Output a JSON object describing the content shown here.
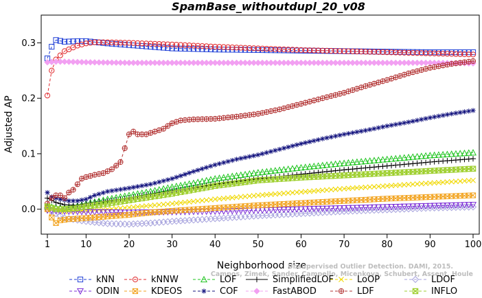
{
  "chart_data": {
    "type": "line",
    "title": "SpamBase_withoutdupl_20_v08",
    "xlabel": "Neighborhood size",
    "ylabel": "Adjusted AP",
    "xlim": [
      1,
      100
    ],
    "ylim": [
      -0.045,
      0.35
    ],
    "xticks": [
      1,
      10,
      20,
      30,
      40,
      50,
      60,
      70,
      80,
      90,
      100
    ],
    "yticks": [
      0.0,
      0.1,
      0.2,
      0.3
    ],
    "ytick_labels": [
      "0.0",
      "0.1",
      "0.2",
      "0.3"
    ],
    "grid": false,
    "legend_position": "bottom",
    "watermark": [
      "Unsupervised Outlier Detection. DAMI, 2015.",
      "Campos, Zimek, Sander, Campello, Micenkova, Schubert, Assent, Houle"
    ],
    "series": [
      {
        "name": "kNN",
        "color": "#1f3fd6",
        "marker": "square",
        "dash": "4,3",
        "points": [
          [
            1,
            0.272
          ],
          [
            2,
            0.293
          ],
          [
            3,
            0.305
          ],
          [
            5,
            0.302
          ],
          [
            8,
            0.303
          ],
          [
            10,
            0.303
          ],
          [
            15,
            0.299
          ],
          [
            20,
            0.296
          ],
          [
            30,
            0.29
          ],
          [
            40,
            0.288
          ],
          [
            50,
            0.287
          ],
          [
            60,
            0.286
          ],
          [
            70,
            0.285
          ],
          [
            80,
            0.284
          ],
          [
            90,
            0.283
          ],
          [
            100,
            0.283
          ]
        ]
      },
      {
        "name": "kNNW",
        "color": "#e0262a",
        "marker": "circle",
        "dash": "4,3",
        "points": [
          [
            1,
            0.205
          ],
          [
            2,
            0.25
          ],
          [
            3,
            0.27
          ],
          [
            5,
            0.285
          ],
          [
            8,
            0.295
          ],
          [
            10,
            0.299
          ],
          [
            12,
            0.301
          ],
          [
            15,
            0.301
          ],
          [
            20,
            0.3
          ],
          [
            30,
            0.297
          ],
          [
            40,
            0.293
          ],
          [
            50,
            0.29
          ],
          [
            60,
            0.287
          ],
          [
            70,
            0.285
          ],
          [
            80,
            0.283
          ],
          [
            90,
            0.281
          ],
          [
            100,
            0.279
          ]
        ]
      },
      {
        "name": "LOF",
        "color": "#1fc41f",
        "marker": "triangle",
        "dash": "4,3",
        "points": [
          [
            1,
            0.005
          ],
          [
            3,
            0.003
          ],
          [
            5,
            0.002
          ],
          [
            8,
            0.006
          ],
          [
            10,
            0.01
          ],
          [
            15,
            0.018
          ],
          [
            20,
            0.025
          ],
          [
            25,
            0.032
          ],
          [
            30,
            0.04
          ],
          [
            35,
            0.047
          ],
          [
            40,
            0.055
          ],
          [
            50,
            0.066
          ],
          [
            60,
            0.075
          ],
          [
            70,
            0.083
          ],
          [
            80,
            0.09
          ],
          [
            90,
            0.097
          ],
          [
            100,
            0.102
          ]
        ]
      },
      {
        "name": "SimplifiedLOF",
        "color": "#000000",
        "marker": "plus",
        "dash": "",
        "points": [
          [
            1,
            0.02
          ],
          [
            3,
            0.012
          ],
          [
            5,
            0.008
          ],
          [
            8,
            0.007
          ],
          [
            10,
            0.01
          ],
          [
            15,
            0.015
          ],
          [
            20,
            0.02
          ],
          [
            25,
            0.027
          ],
          [
            30,
            0.033
          ],
          [
            40,
            0.045
          ],
          [
            50,
            0.055
          ],
          [
            60,
            0.063
          ],
          [
            70,
            0.071
          ],
          [
            80,
            0.078
          ],
          [
            90,
            0.085
          ],
          [
            100,
            0.091
          ]
        ]
      },
      {
        "name": "LoOP",
        "color": "#f0d800",
        "marker": "x",
        "dash": "4,3",
        "points": [
          [
            1,
            0.002
          ],
          [
            3,
            -0.002
          ],
          [
            5,
            -0.004
          ],
          [
            10,
            -0.002
          ],
          [
            15,
            0.0
          ],
          [
            20,
            0.003
          ],
          [
            30,
            0.01
          ],
          [
            40,
            0.018
          ],
          [
            50,
            0.025
          ],
          [
            60,
            0.031
          ],
          [
            70,
            0.037
          ],
          [
            80,
            0.042
          ],
          [
            90,
            0.047
          ],
          [
            100,
            0.052
          ]
        ]
      },
      {
        "name": "LDOF",
        "color": "#a6a2dd",
        "marker": "diamond",
        "dash": "4,3",
        "points": [
          [
            1,
            0.0
          ],
          [
            3,
            -0.008
          ],
          [
            5,
            -0.016
          ],
          [
            10,
            -0.022
          ],
          [
            15,
            -0.026
          ],
          [
            20,
            -0.027
          ],
          [
            25,
            -0.025
          ],
          [
            30,
            -0.022
          ],
          [
            40,
            -0.017
          ],
          [
            50,
            -0.012
          ],
          [
            60,
            -0.008
          ],
          [
            70,
            -0.004
          ],
          [
            80,
            -0.001
          ],
          [
            90,
            0.002
          ],
          [
            100,
            0.004
          ]
        ]
      },
      {
        "name": "ODIN",
        "color": "#7c2dd6",
        "marker": "triangle-down",
        "dash": "4,3",
        "points": [
          [
            1,
            -0.002
          ],
          [
            3,
            -0.003
          ],
          [
            5,
            -0.004
          ],
          [
            10,
            -0.005
          ],
          [
            20,
            -0.006
          ],
          [
            30,
            -0.005
          ],
          [
            40,
            -0.004
          ],
          [
            50,
            -0.002
          ],
          [
            60,
            0.0
          ],
          [
            70,
            0.002
          ],
          [
            80,
            0.004
          ],
          [
            90,
            0.006
          ],
          [
            100,
            0.008
          ]
        ]
      },
      {
        "name": "KDEOS",
        "color": "#f2a21c",
        "marker": "boxx",
        "dash": "4,3",
        "points": [
          [
            1,
            0.0
          ],
          [
            2,
            -0.015
          ],
          [
            3,
            -0.025
          ],
          [
            4,
            -0.02
          ],
          [
            6,
            -0.018
          ],
          [
            10,
            -0.016
          ],
          [
            15,
            -0.013
          ],
          [
            20,
            -0.01
          ],
          [
            25,
            -0.006
          ],
          [
            30,
            -0.003
          ],
          [
            40,
            0.002
          ],
          [
            50,
            0.007
          ],
          [
            60,
            0.011
          ],
          [
            70,
            0.015
          ],
          [
            80,
            0.019
          ],
          [
            90,
            0.022
          ],
          [
            100,
            0.025
          ]
        ]
      },
      {
        "name": "COF",
        "color": "#13137e",
        "marker": "asterisk",
        "dash": "4,3",
        "points": [
          [
            1,
            0.03
          ],
          [
            2,
            0.022
          ],
          [
            3,
            0.02
          ],
          [
            4,
            0.018
          ],
          [
            6,
            0.015
          ],
          [
            8,
            0.015
          ],
          [
            10,
            0.018
          ],
          [
            12,
            0.025
          ],
          [
            15,
            0.032
          ],
          [
            20,
            0.038
          ],
          [
            25,
            0.045
          ],
          [
            30,
            0.055
          ],
          [
            35,
            0.068
          ],
          [
            40,
            0.08
          ],
          [
            45,
            0.09
          ],
          [
            50,
            0.098
          ],
          [
            55,
            0.108
          ],
          [
            60,
            0.118
          ],
          [
            65,
            0.127
          ],
          [
            70,
            0.135
          ],
          [
            75,
            0.142
          ],
          [
            80,
            0.15
          ],
          [
            85,
            0.157
          ],
          [
            90,
            0.165
          ],
          [
            95,
            0.172
          ],
          [
            100,
            0.178
          ]
        ]
      },
      {
        "name": "FastABOD",
        "color": "#f2a0f2",
        "marker": "diamond-filled",
        "dash": "4,3",
        "points": [
          [
            1,
            0.265
          ],
          [
            3,
            0.266
          ],
          [
            5,
            0.266
          ],
          [
            10,
            0.265
          ],
          [
            20,
            0.264
          ],
          [
            30,
            0.264
          ],
          [
            40,
            0.264
          ],
          [
            50,
            0.264
          ],
          [
            60,
            0.264
          ],
          [
            70,
            0.264
          ],
          [
            80,
            0.264
          ],
          [
            90,
            0.264
          ],
          [
            100,
            0.263
          ]
        ]
      },
      {
        "name": "LDF",
        "color": "#b23333",
        "marker": "circle-plus",
        "dash": "4,3",
        "points": [
          [
            1,
            0.01
          ],
          [
            2,
            0.02
          ],
          [
            3,
            0.025
          ],
          [
            4,
            0.025
          ],
          [
            5,
            0.02
          ],
          [
            6,
            0.03
          ],
          [
            7,
            0.035
          ],
          [
            8,
            0.045
          ],
          [
            9,
            0.055
          ],
          [
            10,
            0.058
          ],
          [
            12,
            0.062
          ],
          [
            14,
            0.065
          ],
          [
            16,
            0.072
          ],
          [
            18,
            0.085
          ],
          [
            19,
            0.11
          ],
          [
            20,
            0.135
          ],
          [
            21,
            0.14
          ],
          [
            22,
            0.135
          ],
          [
            24,
            0.135
          ],
          [
            26,
            0.14
          ],
          [
            28,
            0.145
          ],
          [
            30,
            0.155
          ],
          [
            32,
            0.16
          ],
          [
            35,
            0.162
          ],
          [
            40,
            0.163
          ],
          [
            45,
            0.167
          ],
          [
            50,
            0.172
          ],
          [
            55,
            0.18
          ],
          [
            60,
            0.19
          ],
          [
            65,
            0.2
          ],
          [
            70,
            0.21
          ],
          [
            75,
            0.222
          ],
          [
            80,
            0.233
          ],
          [
            85,
            0.245
          ],
          [
            90,
            0.255
          ],
          [
            95,
            0.262
          ],
          [
            100,
            0.267
          ]
        ]
      },
      {
        "name": "INFLO",
        "color": "#9ecf2e",
        "marker": "boxx-filled",
        "dash": "4,3",
        "points": [
          [
            1,
            0.005
          ],
          [
            3,
            0.0
          ],
          [
            5,
            0.0
          ],
          [
            8,
            0.002
          ],
          [
            10,
            0.005
          ],
          [
            15,
            0.01
          ],
          [
            20,
            0.016
          ],
          [
            25,
            0.022
          ],
          [
            30,
            0.028
          ],
          [
            35,
            0.035
          ],
          [
            40,
            0.042
          ],
          [
            50,
            0.052
          ],
          [
            60,
            0.057
          ],
          [
            70,
            0.061
          ],
          [
            80,
            0.065
          ],
          [
            90,
            0.069
          ],
          [
            100,
            0.073
          ]
        ]
      }
    ],
    "legend_rows": [
      [
        "kNN",
        "kNNW",
        "LOF",
        "SimplifiedLOF",
        "LoOP",
        "LDOF"
      ],
      [
        "ODIN",
        "KDEOS",
        "COF",
        "FastABOD",
        "LDF",
        "INFLO"
      ]
    ]
  }
}
